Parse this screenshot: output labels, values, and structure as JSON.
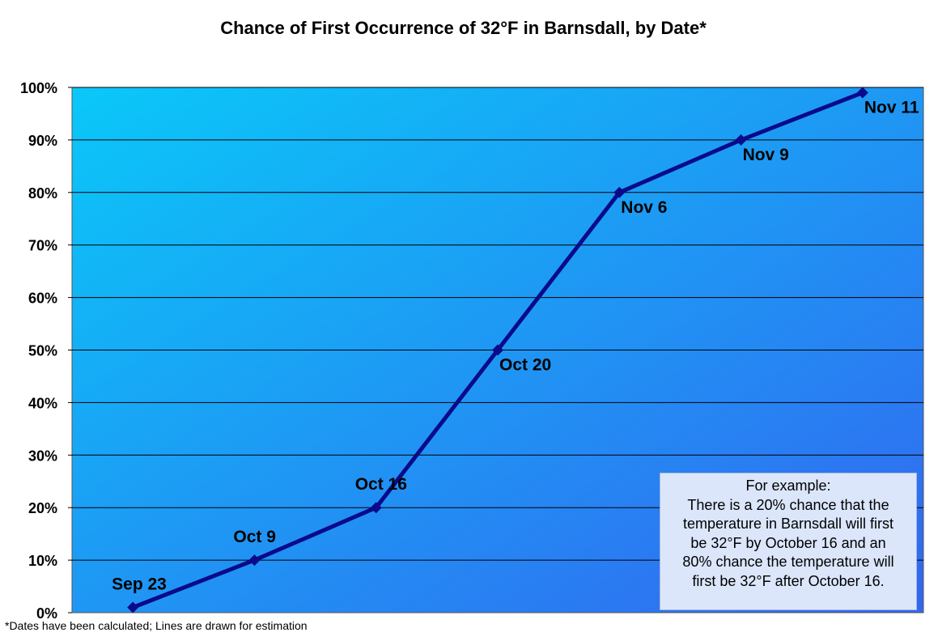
{
  "chart_data": {
    "type": "line",
    "title": "Chance of First Occurrence of 32°F in Barnsdall, by Date*",
    "ylim": [
      0,
      100
    ],
    "y_ticks": [
      "0%",
      "10%",
      "20%",
      "30%",
      "40%",
      "50%",
      "60%",
      "70%",
      "80%",
      "90%",
      "100%"
    ],
    "grid": true,
    "series": [
      {
        "values": [
          1,
          10,
          20,
          50,
          80,
          90,
          99
        ],
        "labels": [
          "Sep 23",
          "Oct 9",
          "Oct 16",
          "Oct 20",
          "Nov 6",
          "Nov 9",
          "Nov 11"
        ]
      }
    ],
    "colors": {
      "line": "#0a0a8a",
      "background_top_left": "#0ac8f8",
      "background_bottom_right": "#3366f0",
      "grid": "#000000"
    }
  },
  "note": {
    "lines": [
      "For example:",
      "There is a 20% chance that the",
      "temperature in Barnsdall will first",
      "be 32°F by October 16 and an",
      "80% chance the temperature will",
      "first be 32°F after October 16."
    ]
  },
  "footnote": "*Dates have been calculated; Lines are drawn for estimation"
}
